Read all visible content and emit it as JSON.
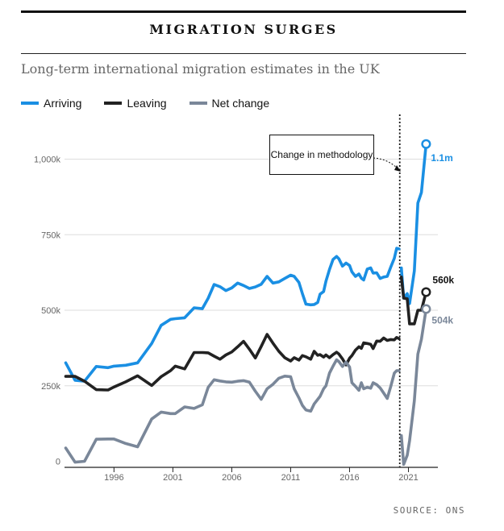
{
  "header": {
    "title": "MIGRATION SURGES",
    "subtitle": "Long-term international migration estimates in the UK",
    "source": "SOURCE: ONS"
  },
  "annotation": {
    "text": "Change in methodology",
    "x": 2020.4
  },
  "chart_data": {
    "type": "line",
    "title": "MIGRATION SURGES",
    "subtitle": "Long-term international migration estimates in the UK",
    "xlabel": "",
    "ylabel": "",
    "xlim": [
      1991.8,
      2023.5
    ],
    "ylim": [
      -20000,
      1100000
    ],
    "x_ticks": [
      1996,
      2001,
      2006,
      2011,
      2016,
      2021
    ],
    "y_ticks": [
      {
        "value": 0,
        "label": "0"
      },
      {
        "value": 250000,
        "label": "250k"
      },
      {
        "value": 500000,
        "label": "500k"
      },
      {
        "value": 750000,
        "label": "750k"
      },
      {
        "value": 1000000,
        "label": "1,000k"
      }
    ],
    "grid": true,
    "legend_position": "top-left",
    "series": [
      {
        "name": "Arriving",
        "color": "#1a8fe3",
        "end_label": "1.1m",
        "segments": [
          {
            "x": [
              1991.9,
              1992.7,
              1993.5,
              1994.5,
              1995.5,
              1996.0,
              1997.0,
              1998.0,
              1999.2,
              2000.0,
              2000.8,
              2001.2,
              2002.0,
              2002.8,
              2003.5,
              2004.0,
              2004.5,
              2005.0,
              2005.5,
              2006.0,
              2006.5,
              2007.0,
              2007.5,
              2008.0,
              2008.5,
              2009.0,
              2009.5,
              2010.0,
              2010.5,
              2011.0,
              2011.3,
              2011.7,
              2012.0,
              2012.3,
              2012.7,
              2013.0,
              2013.3,
              2013.5,
              2013.8,
              2014.0,
              2014.3,
              2014.6,
              2014.9,
              2015.1,
              2015.4,
              2015.7,
              2016.0,
              2016.2,
              2016.5,
              2016.8,
              2017.0,
              2017.2,
              2017.5,
              2017.8,
              2018.0,
              2018.3,
              2018.6,
              2018.9,
              2019.2,
              2019.5,
              2019.8,
              2020.0,
              2020.2
            ],
            "y": [
              326000,
              268000,
              265000,
              314000,
              310000,
              315000,
              318000,
              326000,
              390000,
              450000,
              470000,
              472000,
              475000,
              508000,
              505000,
              540000,
              585000,
              578000,
              565000,
              574000,
              590000,
              582000,
              572000,
              577000,
              586000,
              612000,
              590000,
              594000,
              605000,
              616000,
              612000,
              592000,
              555000,
              520000,
              518000,
              519000,
              526000,
              553000,
              562000,
              596000,
              635000,
              668000,
              678000,
              670000,
              646000,
              656000,
              648000,
              627000,
              612000,
              620000,
              606000,
              600000,
              636000,
              640000,
              623000,
              624000,
              605000,
              610000,
              612000,
              643000,
              672000,
              705000,
              703000
            ]
          },
          {
            "x": [
              2020.4,
              2020.6,
              2020.9,
              2021.1,
              2021.5,
              2021.8,
              2022.1,
              2022.5
            ],
            "y": [
              640000,
              540000,
              555000,
              522000,
              630000,
              855000,
              890000,
              1050000
            ]
          }
        ]
      },
      {
        "name": "Leaving",
        "color": "#222222",
        "end_label": "560k",
        "segments": [
          {
            "x": [
              1991.9,
              1992.7,
              1993.5,
              1994.5,
              1995.5,
              1996.0,
              1997.0,
              1998.0,
              1999.2,
              2000.0,
              2000.8,
              2001.2,
              2002.0,
              2002.8,
              2003.5,
              2004.0,
              2004.5,
              2005.0,
              2005.5,
              2006.0,
              2006.5,
              2007.0,
              2007.5,
              2008.0,
              2008.5,
              2009.0,
              2009.5,
              2010.0,
              2010.5,
              2011.0,
              2011.3,
              2011.7,
              2012.0,
              2012.3,
              2012.7,
              2013.0,
              2013.3,
              2013.5,
              2013.8,
              2014.0,
              2014.3,
              2014.6,
              2014.9,
              2015.1,
              2015.4,
              2015.7,
              2016.0,
              2016.2,
              2016.5,
              2016.8,
              2017.0,
              2017.2,
              2017.5,
              2017.8,
              2018.0,
              2018.3,
              2018.6,
              2018.9,
              2019.2,
              2019.5,
              2019.8,
              2020.0,
              2020.2
            ],
            "y": [
              281000,
              281000,
              265000,
              237000,
              236000,
              246000,
              263000,
              283000,
              251000,
              280000,
              300000,
              315000,
              306000,
              360000,
              360000,
              359000,
              348000,
              338000,
              352000,
              362000,
              379000,
              397000,
              371000,
              342000,
              380000,
              420000,
              391000,
              364000,
              343000,
              332000,
              343000,
              335000,
              350000,
              346000,
              338000,
              364000,
              351000,
              353000,
              345000,
              352000,
              343000,
              353000,
              361000,
              355000,
              339000,
              319000,
              341000,
              350000,
              368000,
              379000,
              374000,
              392000,
              390000,
              387000,
              373000,
              398000,
              397000,
              408000,
              400000,
              403000,
              402000,
              410000,
              406000
            ]
          },
          {
            "x": [
              2020.4,
              2020.6,
              2020.9,
              2021.1,
              2021.5,
              2021.8,
              2022.1,
              2022.5
            ],
            "y": [
              610000,
              540000,
              538000,
              455000,
              455000,
              500000,
              500000,
              560000
            ]
          }
        ]
      },
      {
        "name": "Net change",
        "color": "#7a8799",
        "end_label": "504k",
        "segments": [
          {
            "x": [
              1991.9,
              1992.7,
              1993.5,
              1994.5,
              1995.5,
              1996.0,
              1997.0,
              1998.0,
              1999.2,
              2000.0,
              2000.8,
              2001.2,
              2002.0,
              2002.8,
              2003.5,
              2004.0,
              2004.5,
              2005.0,
              2005.5,
              2006.0,
              2006.5,
              2007.0,
              2007.5,
              2008.0,
              2008.5,
              2009.0,
              2009.5,
              2010.0,
              2010.5,
              2011.0,
              2011.3,
              2011.7,
              2012.0,
              2012.3,
              2012.7,
              2013.0,
              2013.3,
              2013.5,
              2013.8,
              2014.0,
              2014.3,
              2014.6,
              2014.9,
              2015.1,
              2015.4,
              2015.7,
              2016.0,
              2016.2,
              2016.5,
              2016.8,
              2017.0,
              2017.2,
              2017.5,
              2017.8,
              2018.0,
              2018.3,
              2018.6,
              2018.9,
              2019.2,
              2019.5,
              2019.8,
              2020.0,
              2020.2
            ],
            "y": [
              44000,
              -3000,
              0,
              73000,
              74000,
              74000,
              59000,
              48000,
              140000,
              163000,
              158000,
              158000,
              180000,
              175000,
              187000,
              245000,
              270000,
              266000,
              263000,
              262000,
              265000,
              267000,
              262000,
              232000,
              205000,
              240000,
              255000,
              275000,
              282000,
              280000,
              240000,
              210000,
              185000,
              170000,
              166000,
              190000,
              205000,
              215000,
              240000,
              250000,
              292000,
              315000,
              336000,
              330000,
              314000,
              328000,
              312000,
              260000,
              248000,
              235000,
              260000,
              240000,
              245000,
              242000,
              260000,
              254000,
              243000,
              226000,
              208000,
              248000,
              292000,
              300000,
              300000
            ]
          },
          {
            "x": [
              2020.4,
              2020.6,
              2020.9,
              2021.1,
              2021.5,
              2021.8,
              2022.1,
              2022.5
            ],
            "y": [
              85000,
              -10000,
              20000,
              68000,
              200000,
              355000,
              404000,
              504000
            ]
          }
        ]
      }
    ]
  }
}
